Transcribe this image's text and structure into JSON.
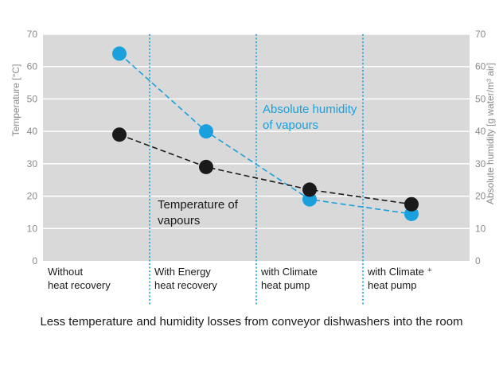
{
  "chart_data": {
    "type": "line",
    "title": "",
    "caption": "Less temperature and humidity losses from conveyor dishwashers into the room",
    "ylabel_left": "Temperature [°C]",
    "ylabel_right": "Absolute humidity [g water/m³ air]",
    "ylim": [
      0,
      70
    ],
    "yticks": [
      0,
      10,
      20,
      30,
      40,
      50,
      60,
      70
    ],
    "categories": [
      [
        "Without",
        "heat recovery"
      ],
      [
        "With Energy",
        "heat recovery"
      ],
      [
        "with Climate",
        "heat pump"
      ],
      [
        "with Climate ⁺",
        "heat pump"
      ]
    ],
    "series": [
      {
        "name": "Absolute humidity of vapours",
        "label_lines": [
          "Absolute humidity",
          "of vapours"
        ],
        "color": "#1aa0dc",
        "values": [
          64,
          40,
          19,
          14.5
        ]
      },
      {
        "name": "Temperature of vapours",
        "label_lines": [
          "Temperature of",
          "vapours"
        ],
        "color": "#1a1a1a",
        "values": [
          39,
          29,
          22,
          17.5
        ]
      }
    ],
    "grid": true,
    "background": "#d9d9d9",
    "divider_color": "#1aa0dc"
  }
}
